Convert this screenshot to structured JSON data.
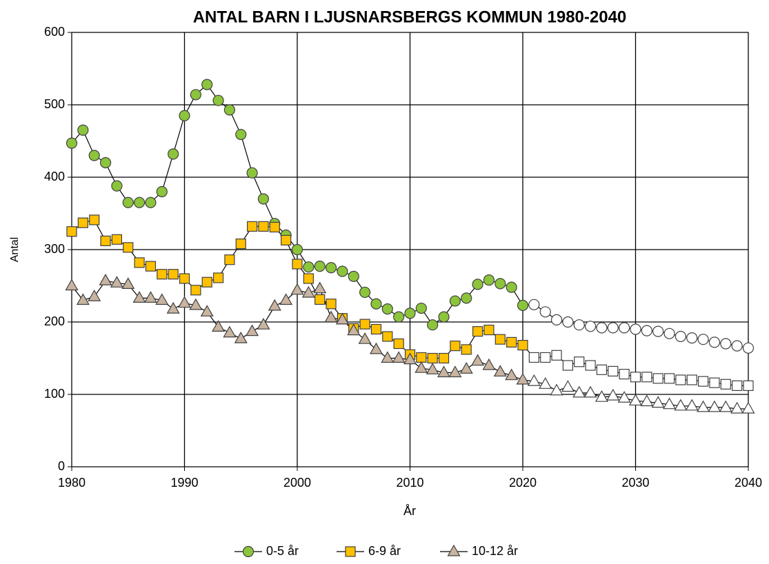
{
  "chart_data": {
    "type": "line",
    "title": "ANTAL BARN I LJUSNARSBERGS KOMMUN 1980-2040",
    "x_label": "År",
    "y_label": "Antal",
    "x": [
      1980,
      1981,
      1982,
      1983,
      1984,
      1985,
      1986,
      1987,
      1988,
      1989,
      1990,
      1991,
      1992,
      1993,
      1994,
      1995,
      1996,
      1997,
      1998,
      1999,
      2000,
      2001,
      2002,
      2003,
      2004,
      2005,
      2006,
      2007,
      2008,
      2009,
      2010,
      2011,
      2012,
      2013,
      2014,
      2015,
      2016,
      2017,
      2018,
      2019,
      2020,
      2021,
      2022,
      2023,
      2024,
      2025,
      2026,
      2027,
      2028,
      2029,
      2030,
      2031,
      2032,
      2033,
      2034,
      2035,
      2036,
      2037,
      2038,
      2039,
      2040
    ],
    "series": [
      {
        "name": "0-5 år",
        "color": "#8cc43c",
        "marker": "circle",
        "values": [
          447,
          465,
          430,
          420,
          388,
          365,
          365,
          365,
          380,
          432,
          485,
          514,
          528,
          506,
          493,
          459,
          406,
          370,
          336,
          320,
          300,
          276,
          277,
          275,
          270,
          263,
          241,
          225,
          218,
          207,
          212,
          219,
          196,
          207,
          229,
          233,
          252,
          258,
          253,
          248,
          223,
          224,
          214,
          203,
          200,
          196,
          194,
          192,
          192,
          192,
          190,
          188,
          187,
          184,
          180,
          178,
          176,
          172,
          170,
          167,
          164
        ]
      },
      {
        "name": "6-9 år",
        "color": "#ffc000",
        "marker": "square",
        "values": [
          325,
          337,
          341,
          312,
          314,
          303,
          282,
          277,
          266,
          266,
          260,
          244,
          255,
          261,
          286,
          308,
          332,
          332,
          331,
          313,
          280,
          260,
          231,
          225,
          205,
          191,
          197,
          190,
          180,
          170,
          155,
          151,
          150,
          150,
          167,
          162,
          187,
          189,
          176,
          172,
          168,
          151,
          151,
          154,
          140,
          145,
          140,
          134,
          132,
          128,
          124,
          124,
          122,
          122,
          120,
          120,
          118,
          116,
          114,
          112,
          112
        ]
      },
      {
        "name": "10-12 år",
        "color": "#c8b4a0",
        "marker": "triangle",
        "values": [
          250,
          230,
          235,
          257,
          254,
          252,
          233,
          233,
          230,
          218,
          226,
          223,
          214,
          193,
          185,
          177,
          187,
          196,
          222,
          230,
          244,
          240,
          246,
          206,
          203,
          188,
          176,
          162,
          150,
          150,
          148,
          136,
          134,
          130,
          130,
          135,
          146,
          140,
          131,
          126,
          120,
          118,
          114,
          105,
          110,
          102,
          102,
          96,
          98,
          95,
          91,
          90,
          88,
          86,
          84,
          84,
          82,
          82,
          82,
          80,
          80
        ]
      }
    ],
    "forecast_start": 2021,
    "forecast_fill": "#ffffff",
    "xlim": [
      1980,
      2040
    ],
    "xticks": [
      1980,
      1990,
      2000,
      2010,
      2020,
      2030,
      2040
    ],
    "ylim": [
      0,
      600
    ],
    "yticks": [
      0,
      100,
      200,
      300,
      400,
      500,
      600
    ],
    "grid": true,
    "legend": "bottom",
    "title_color": "#d0705c"
  }
}
